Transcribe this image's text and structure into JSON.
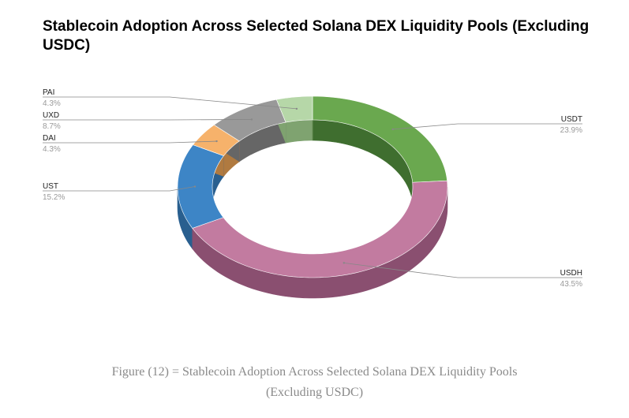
{
  "chart_data": {
    "type": "pie",
    "title": "Stablecoin Adoption Across Selected Solana DEX Liquidity Pools (Excluding USDC)",
    "style": "3d-donut",
    "slices": [
      {
        "label": "USDT",
        "value": 23.9,
        "display": "23.9%",
        "color": "#6aa84f",
        "side_color": "#3f6e2f"
      },
      {
        "label": "USDH",
        "value": 43.5,
        "display": "43.5%",
        "color": "#c27ba0",
        "side_color": "#8a4f70"
      },
      {
        "label": "UST",
        "value": 15.2,
        "display": "15.2%",
        "color": "#3d85c6",
        "side_color": "#295f8f"
      },
      {
        "label": "DAI",
        "value": 4.3,
        "display": "4.3%",
        "color": "#f6b26b",
        "side_color": "#b07a40"
      },
      {
        "label": "UXD",
        "value": 8.7,
        "display": "8.7%",
        "color": "#999999",
        "side_color": "#666666"
      },
      {
        "label": "PAI",
        "value": 4.3,
        "display": "4.3%",
        "color": "#b6d7a8",
        "side_color": "#7fa370"
      }
    ]
  },
  "caption": {
    "line1": "Figure (12) = Stablecoin Adoption Across Selected Solana DEX Liquidity Pools",
    "line2": "(Excluding USDC)"
  }
}
